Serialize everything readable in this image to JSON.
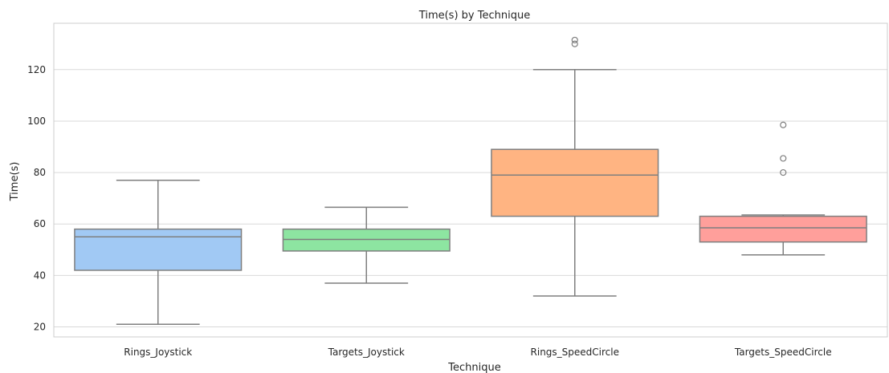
{
  "chart_data": {
    "type": "box",
    "title": "Time(s) by Technique",
    "xlabel": "Technique",
    "ylabel": "Time(s)",
    "ylim": [
      16,
      138
    ],
    "yticks": [
      20,
      40,
      60,
      80,
      100,
      120
    ],
    "grid": "horizontal",
    "categories": [
      "Rings_Joystick",
      "Targets_Joystick",
      "Rings_SpeedCircle",
      "Targets_SpeedCircle"
    ],
    "boxes": [
      {
        "category": "Rings_Joystick",
        "whisker_low": 21,
        "q1": 42,
        "median": 55,
        "q3": 58,
        "whisker_high": 77,
        "outliers": [],
        "color": "#a1c9f4"
      },
      {
        "category": "Targets_Joystick",
        "whisker_low": 37,
        "q1": 49.5,
        "median": 54,
        "q3": 58,
        "whisker_high": 66.5,
        "outliers": [],
        "color": "#8de5a1"
      },
      {
        "category": "Rings_SpeedCircle",
        "whisker_low": 32,
        "q1": 63,
        "median": 79,
        "q3": 89,
        "whisker_high": 120,
        "outliers": [
          130,
          131.5
        ],
        "color": "#ffb482"
      },
      {
        "category": "Targets_SpeedCircle",
        "whisker_low": 48,
        "q1": 53,
        "median": 58.5,
        "q3": 63,
        "whisker_high": 63.5,
        "outliers": [
          80,
          85.5,
          98.5
        ],
        "color": "#ff9f9b"
      }
    ]
  }
}
